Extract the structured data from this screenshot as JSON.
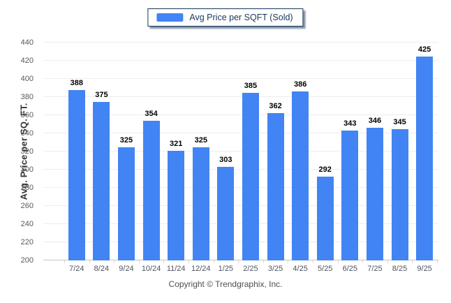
{
  "chart_data": {
    "type": "bar",
    "legend": "Avg Price per SQFT (Sold)",
    "categories": [
      "7/24",
      "8/24",
      "9/24",
      "10/24",
      "11/24",
      "12/24",
      "1/25",
      "2/25",
      "3/25",
      "4/25",
      "5/25",
      "6/25",
      "7/25",
      "8/25",
      "9/25"
    ],
    "values": [
      388,
      375,
      325,
      354,
      321,
      325,
      303,
      385,
      362,
      386,
      292,
      343,
      346,
      345,
      425
    ],
    "title": "",
    "xlabel": "",
    "ylabel": "Avg. Price per SQ. FT.",
    "ylim": [
      200,
      440
    ],
    "ytick_step": 20,
    "grid": true,
    "legend_position": "top",
    "colors": {
      "bar": "#4284f4",
      "legend_border": "#17375d",
      "value_label": "#000000"
    }
  },
  "footer": {
    "copyright": "Copyright © Trendgraphix, Inc."
  }
}
